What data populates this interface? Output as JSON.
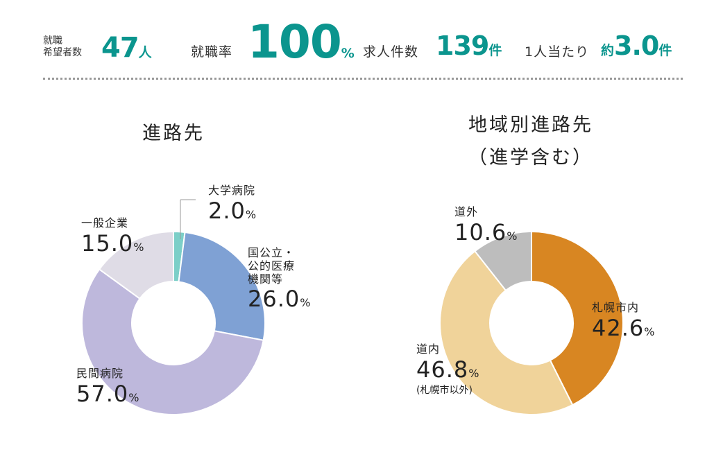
{
  "header": {
    "applicants_label_line1": "就職",
    "applicants_label_line2": "希望者数",
    "applicants_value": "47",
    "applicants_unit": "人",
    "employment_rate_label": "就職率",
    "employment_rate_value": "100",
    "employment_rate_unit": "%",
    "job_offers_label": "求人件数",
    "job_offers_value": "139",
    "job_offers_unit": "件",
    "per_person_label": "1人当たり",
    "per_person_prefix": "約",
    "per_person_value": "3.0",
    "per_person_unit": "件"
  },
  "chart_data": [
    {
      "type": "pie",
      "title": "進路先",
      "categories": [
        "大学病院",
        "国公立・公的医療機関等",
        "民間病院",
        "一般企業"
      ],
      "values": [
        2.0,
        26.0,
        57.0,
        15.0
      ],
      "value_labels": [
        "2.0",
        "26.0",
        "57.0",
        "15.0"
      ],
      "unit": "%",
      "colors": [
        "#7ccfc8",
        "#7fa1d4",
        "#beb8dc",
        "#dfdce6"
      ],
      "category_lines": [
        [
          "大学病院"
        ],
        [
          "国公立・",
          "公的医療",
          "機関等"
        ],
        [
          "民間病院"
        ],
        [
          "一般企業"
        ]
      ]
    },
    {
      "type": "pie",
      "title_line1": "地域別進路先",
      "title_line2": "（進学含む）",
      "categories": [
        "札幌市内",
        "道内",
        "道外"
      ],
      "values": [
        42.6,
        46.8,
        10.6
      ],
      "value_labels": [
        "42.6",
        "46.8",
        "10.6"
      ],
      "unit": "%",
      "notes": [
        "",
        "(札幌市以外)",
        ""
      ],
      "colors": [
        "#d88622",
        "#f0d39a",
        "#bdbdbd"
      ]
    }
  ]
}
